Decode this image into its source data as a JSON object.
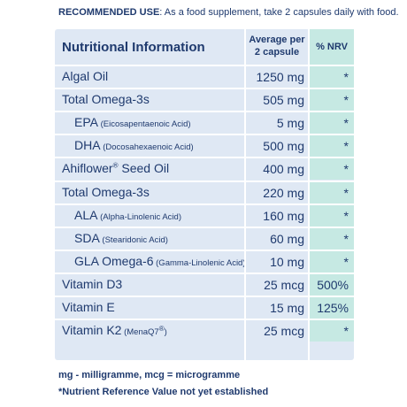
{
  "usage": {
    "label": "RECOMMENDED USE",
    "text": ": As a food supplement, take 2 capsules daily with food."
  },
  "table": {
    "header": {
      "name": "Nutritional Information",
      "amount": "Average per 2 capsule",
      "nrv": "% NRV"
    },
    "rows": [
      {
        "name": "Algal Oil",
        "sub": "",
        "sup": "",
        "indent": false,
        "amount": "1250 mg",
        "nrv": "*"
      },
      {
        "name": "Total Omega-3s",
        "sub": "",
        "sup": "",
        "indent": false,
        "amount": "505 mg",
        "nrv": "*"
      },
      {
        "name": "EPA",
        "sub": "(Eicosapentaenoic Acid)",
        "sup": "",
        "indent": true,
        "amount": "5 mg",
        "nrv": "*"
      },
      {
        "name": "DHA",
        "sub": "(Docosahexaenoic Acid)",
        "sup": "",
        "indent": true,
        "amount": "500 mg",
        "nrv": "*"
      },
      {
        "name": "Ahiflower",
        "sub": "",
        "sup": "®",
        "after": " Seed Oil",
        "indent": false,
        "amount": "400 mg",
        "nrv": "*"
      },
      {
        "name": "Total Omega-3s",
        "sub": "",
        "sup": "",
        "indent": false,
        "amount": "220 mg",
        "nrv": "*"
      },
      {
        "name": "ALA",
        "sub": "(Alpha-Linolenic Acid)",
        "sup": "",
        "indent": true,
        "amount": "160 mg",
        "nrv": "*"
      },
      {
        "name": "SDA",
        "sub": "(Stearidonic Acid)",
        "sup": "",
        "indent": true,
        "amount": "60 mg",
        "nrv": "*"
      },
      {
        "name": "GLA Omega-6",
        "sub": "(Gamma-Linolenic Acid)",
        "sup": "",
        "indent": true,
        "amount": "10 mg",
        "nrv": "*"
      },
      {
        "name": "Vitamin D3",
        "sub": "",
        "sup": "",
        "indent": false,
        "amount": "25 mcg",
        "nrv": "500%"
      },
      {
        "name": "Vitamin E",
        "sub": "",
        "sup": "",
        "indent": false,
        "amount": "15 mg",
        "nrv": "125%"
      },
      {
        "name": "Vitamin K2",
        "sub": "(MenaQ7",
        "sup": "®",
        "after": ")",
        "indent": false,
        "amount": "25 mcg",
        "nrv": "*"
      }
    ]
  },
  "footnotes": {
    "units": "mg - milligramme, mcg = microgramme",
    "nrv_note": "*Nutrient Reference Value not yet established"
  }
}
